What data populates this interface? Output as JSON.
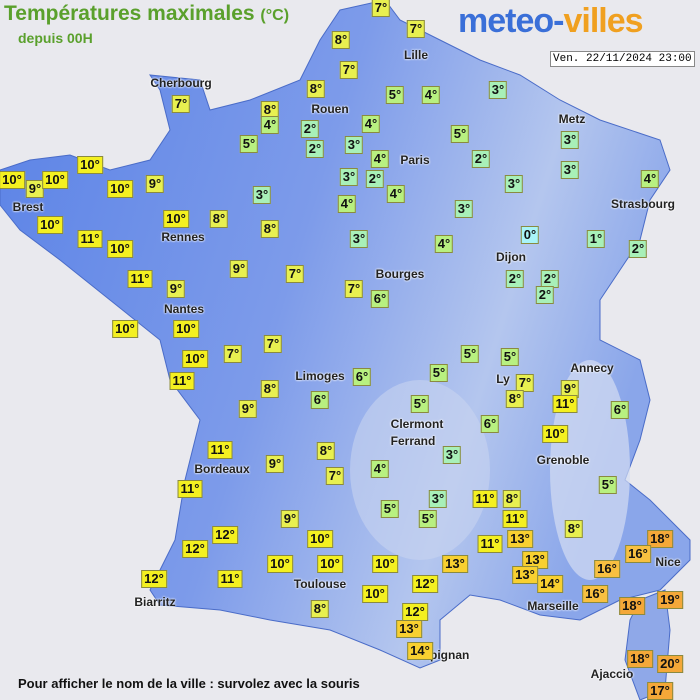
{
  "header": {
    "title": "Températures maximales",
    "unit": "(°C)",
    "subtitle": "depuis 00H",
    "logo_a": "meteo-",
    "logo_b": "villes",
    "date": "Ven. 22/11/2024 23:00"
  },
  "cities": [
    "Cherbourg",
    "Rouen",
    "Lille",
    "Metz",
    "Paris",
    "Brest",
    "Rennes",
    "Strasbourg",
    "Dijon",
    "Bourges",
    "Nantes",
    "Annecy",
    "Limoges",
    "Ly",
    "Clermont",
    "Ferrand",
    "Grenoble",
    "Bordeaux",
    "Nice",
    "Toulouse",
    "Marseille",
    "Biarritz",
    "Perpignan",
    "Ajaccio"
  ],
  "temperatures": [
    "7°",
    "7°",
    "8°",
    "7°",
    "8°",
    "5°",
    "4°",
    "3°",
    "7°",
    "8°",
    "4°",
    "2°",
    "4°",
    "5°",
    "3°",
    "5°",
    "2°",
    "3°",
    "4°",
    "2°",
    "10°",
    "3°",
    "3°",
    "2°",
    "10°",
    "9°",
    "10°",
    "10°",
    "9°",
    "3°",
    "4°",
    "3°",
    "4°",
    "4°",
    "3°",
    "10°",
    "10°",
    "8°",
    "8°",
    "11°",
    "10°",
    "3°",
    "4°",
    "0°",
    "1°",
    "2°",
    "11°",
    "9°",
    "7°",
    "9°",
    "2°",
    "2°",
    "2°",
    "7°",
    "6°",
    "10°",
    "10°",
    "7°",
    "7°",
    "10°",
    "5°",
    "5°",
    "11°",
    "6°",
    "5°",
    "7°",
    "9°",
    "8°",
    "8°",
    "11°",
    "9°",
    "6°",
    "5°",
    "6°",
    "6°",
    "10°",
    "3°",
    "8°",
    "11°",
    "9°",
    "4°",
    "7°",
    "11°",
    "3°",
    "11°",
    "8°",
    "5°",
    "5°",
    "5°",
    "9°",
    "11°",
    "8°",
    "12°",
    "10°",
    "13°",
    "11°",
    "18°",
    "12°",
    "16°",
    "10°",
    "10°",
    "10°",
    "13°",
    "13°",
    "13°",
    "16°",
    "12°",
    "11°",
    "14°",
    "12°",
    "10°",
    "16°",
    "18°",
    "19°",
    "8°",
    "12°",
    "13°",
    "14°",
    "18°",
    "20°",
    "17°"
  ],
  "footer": "Pour afficher le nom de la ville : survolez avec la souris"
}
